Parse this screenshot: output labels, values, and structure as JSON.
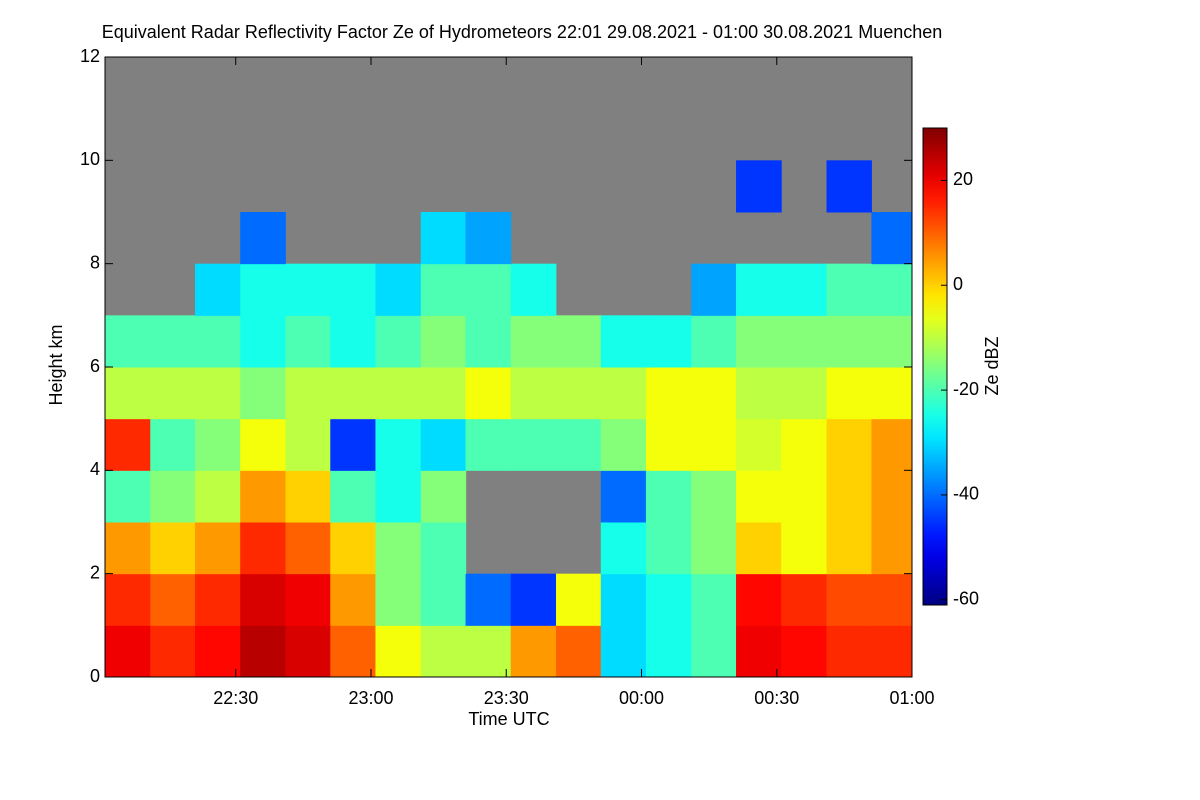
{
  "chart_data": {
    "type": "heatmap",
    "title": "Equivalent Radar Reflectivity Factor Ze of Hydrometeors   22:01 29.08.2021 - 01:00 30.08.2021 Muenchen",
    "x_label": "Time UTC",
    "y_label": "Height km",
    "colorbar_label": "Ze dBZ",
    "xlim": [
      22.0167,
      25
    ],
    "xticks": [
      {
        "value": 22.5,
        "label": "22:30"
      },
      {
        "value": 23,
        "label": "23:00"
      },
      {
        "value": 23.5,
        "label": "23:30"
      },
      {
        "value": 24,
        "label": "00:00"
      },
      {
        "value": 24.5,
        "label": "00:30"
      },
      {
        "value": 25,
        "label": "01:00"
      }
    ],
    "ylim": [
      0,
      12
    ],
    "yticks": [
      0,
      2,
      4,
      6,
      8,
      10,
      12
    ],
    "clim": [
      -61,
      30
    ],
    "cticks": [
      -60,
      -40,
      -20,
      0,
      20
    ],
    "missing_color": "#808080",
    "x": [
      22.1,
      22.267,
      22.433,
      22.6,
      22.767,
      22.933,
      23.1,
      23.267,
      23.433,
      23.6,
      23.767,
      23.933,
      24.1,
      24.267,
      24.433,
      24.6,
      24.767,
      24.933
    ],
    "y": [
      0.5,
      1.5,
      2.5,
      3.5,
      4.5,
      5.5,
      6.5,
      7.5,
      8.5,
      9.5,
      10.5,
      11.5
    ],
    "z": [
      [
        20,
        15,
        18,
        25,
        22,
        10,
        -5,
        -10,
        -10,
        5,
        10,
        -30,
        -25,
        -20,
        20,
        18,
        15,
        15
      ],
      [
        15,
        10,
        15,
        22,
        20,
        5,
        -15,
        -20,
        -40,
        -45,
        -5,
        -30,
        -25,
        -20,
        18,
        15,
        12,
        12
      ],
      [
        5,
        0,
        5,
        15,
        10,
        0,
        -15,
        -20,
        null,
        null,
        null,
        -25,
        -20,
        -15,
        0,
        -5,
        0,
        5
      ],
      [
        -20,
        -15,
        -10,
        5,
        0,
        -20,
        -25,
        -15,
        null,
        null,
        null,
        -40,
        -20,
        -15,
        -5,
        -5,
        0,
        5
      ],
      [
        15,
        -20,
        -15,
        -5,
        -10,
        -45,
        -25,
        -30,
        -20,
        -20,
        -20,
        -15,
        -5,
        -5,
        -8,
        -5,
        0,
        5
      ],
      [
        -10,
        -10,
        -10,
        -15,
        -10,
        -10,
        -10,
        -10,
        -5,
        -10,
        -10,
        -10,
        -5,
        -5,
        -10,
        -10,
        -5,
        -5
      ],
      [
        -20,
        -20,
        -20,
        -25,
        -20,
        -25,
        -20,
        -15,
        -20,
        -15,
        -15,
        -25,
        -25,
        -20,
        -15,
        -15,
        -15,
        -15
      ],
      [
        null,
        null,
        -30,
        -25,
        -25,
        -25,
        -30,
        -20,
        -20,
        -25,
        null,
        null,
        null,
        -35,
        -25,
        -25,
        -20,
        -20
      ],
      [
        null,
        null,
        null,
        -40,
        null,
        null,
        null,
        -30,
        -35,
        null,
        null,
        null,
        null,
        null,
        null,
        null,
        null,
        -40
      ],
      [
        null,
        null,
        null,
        null,
        null,
        null,
        null,
        null,
        null,
        null,
        null,
        null,
        null,
        null,
        -45,
        null,
        -45,
        null
      ],
      [
        null,
        null,
        null,
        null,
        null,
        null,
        null,
        null,
        null,
        null,
        null,
        null,
        null,
        null,
        null,
        null,
        null,
        null
      ],
      [
        null,
        null,
        null,
        null,
        null,
        null,
        null,
        null,
        null,
        null,
        null,
        null,
        null,
        null,
        null,
        null,
        null,
        null
      ]
    ]
  }
}
